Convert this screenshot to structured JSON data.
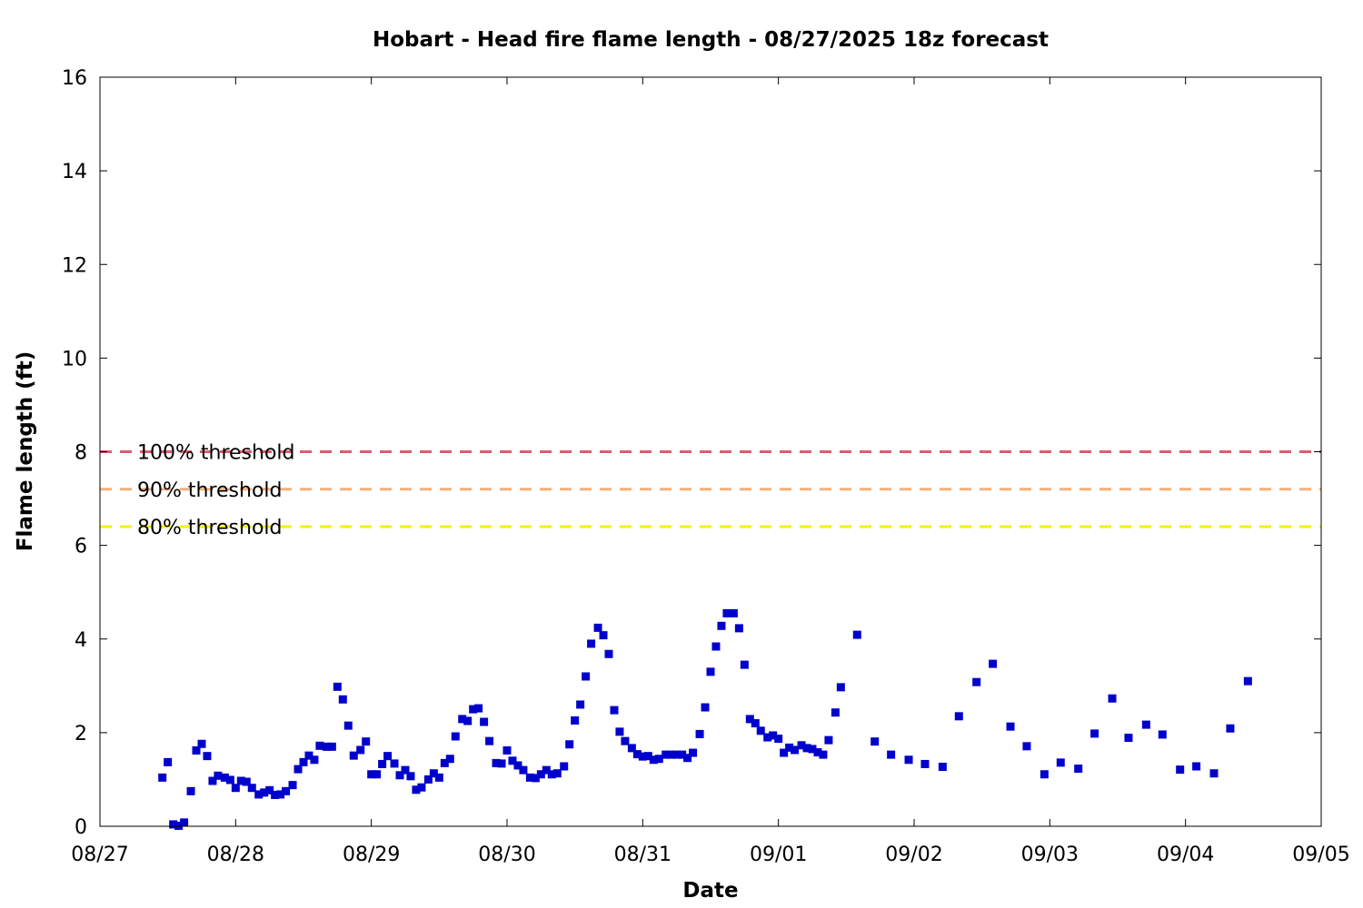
{
  "chart_data": {
    "type": "scatter",
    "title": "Hobart - Head fire flame length - 08/27/2025 18z forecast",
    "xlabel": "Date",
    "ylabel": "Flame length (ft)",
    "xlim": [
      0,
      9
    ],
    "ylim": [
      0,
      16
    ],
    "x_ticks": [
      {
        "value": 0,
        "label": "08/27"
      },
      {
        "value": 1,
        "label": "08/28"
      },
      {
        "value": 2,
        "label": "08/29"
      },
      {
        "value": 3,
        "label": "08/30"
      },
      {
        "value": 4,
        "label": "08/31"
      },
      {
        "value": 5,
        "label": "09/01"
      },
      {
        "value": 6,
        "label": "09/02"
      },
      {
        "value": 7,
        "label": "09/03"
      },
      {
        "value": 8,
        "label": "09/04"
      },
      {
        "value": 9,
        "label": "09/05"
      }
    ],
    "y_ticks": [
      0,
      2,
      4,
      6,
      8,
      10,
      12,
      14,
      16
    ],
    "grid": false,
    "thresholds": [
      {
        "name": "100% threshold",
        "value": 8.0,
        "color": "#e05c70"
      },
      {
        "name": "90% threshold",
        "value": 7.2,
        "color": "#f5b07a"
      },
      {
        "name": "80% threshold",
        "value": 6.4,
        "color": "#f2f20a"
      }
    ],
    "series": [
      {
        "marker_color": "#0000cc",
        "points": [
          [
            0.46,
            1.04
          ],
          [
            0.5,
            1.37
          ],
          [
            0.54,
            0.04
          ],
          [
            0.58,
            0.01
          ],
          [
            0.62,
            0.08
          ],
          [
            0.67,
            0.75
          ],
          [
            0.71,
            1.62
          ],
          [
            0.75,
            1.76
          ],
          [
            0.79,
            1.5
          ],
          [
            0.83,
            0.97
          ],
          [
            0.87,
            1.08
          ],
          [
            0.92,
            1.04
          ],
          [
            0.96,
            0.99
          ],
          [
            1.0,
            0.82
          ],
          [
            1.04,
            0.97
          ],
          [
            1.08,
            0.95
          ],
          [
            1.12,
            0.82
          ],
          [
            1.17,
            0.68
          ],
          [
            1.21,
            0.72
          ],
          [
            1.25,
            0.77
          ],
          [
            1.29,
            0.67
          ],
          [
            1.33,
            0.68
          ],
          [
            1.37,
            0.75
          ],
          [
            1.42,
            0.88
          ],
          [
            1.46,
            1.22
          ],
          [
            1.5,
            1.37
          ],
          [
            1.54,
            1.51
          ],
          [
            1.58,
            1.42
          ],
          [
            1.62,
            1.72
          ],
          [
            1.67,
            1.7
          ],
          [
            1.71,
            1.7
          ],
          [
            1.75,
            2.98
          ],
          [
            1.79,
            2.71
          ],
          [
            1.83,
            2.15
          ],
          [
            1.87,
            1.51
          ],
          [
            1.92,
            1.63
          ],
          [
            1.96,
            1.81
          ],
          [
            2.0,
            1.11
          ],
          [
            2.04,
            1.11
          ],
          [
            2.08,
            1.33
          ],
          [
            2.12,
            1.5
          ],
          [
            2.17,
            1.34
          ],
          [
            2.21,
            1.09
          ],
          [
            2.25,
            1.2
          ],
          [
            2.29,
            1.07
          ],
          [
            2.33,
            0.78
          ],
          [
            2.37,
            0.83
          ],
          [
            2.42,
            1.0
          ],
          [
            2.46,
            1.13
          ],
          [
            2.5,
            1.04
          ],
          [
            2.54,
            1.35
          ],
          [
            2.58,
            1.44
          ],
          [
            2.62,
            1.92
          ],
          [
            2.67,
            2.29
          ],
          [
            2.71,
            2.25
          ],
          [
            2.75,
            2.5
          ],
          [
            2.79,
            2.52
          ],
          [
            2.83,
            2.23
          ],
          [
            2.87,
            1.82
          ],
          [
            2.92,
            1.35
          ],
          [
            2.96,
            1.34
          ],
          [
            3.0,
            1.62
          ],
          [
            3.04,
            1.4
          ],
          [
            3.08,
            1.3
          ],
          [
            3.12,
            1.2
          ],
          [
            3.17,
            1.04
          ],
          [
            3.21,
            1.03
          ],
          [
            3.25,
            1.11
          ],
          [
            3.29,
            1.2
          ],
          [
            3.33,
            1.11
          ],
          [
            3.37,
            1.13
          ],
          [
            3.42,
            1.28
          ],
          [
            3.46,
            1.75
          ],
          [
            3.5,
            2.26
          ],
          [
            3.54,
            2.6
          ],
          [
            3.58,
            3.2
          ],
          [
            3.62,
            3.9
          ],
          [
            3.67,
            4.24
          ],
          [
            3.71,
            4.08
          ],
          [
            3.75,
            3.68
          ],
          [
            3.79,
            2.48
          ],
          [
            3.83,
            2.02
          ],
          [
            3.87,
            1.82
          ],
          [
            3.92,
            1.67
          ],
          [
            3.96,
            1.54
          ],
          [
            4.0,
            1.49
          ],
          [
            4.04,
            1.5
          ],
          [
            4.08,
            1.42
          ],
          [
            4.12,
            1.44
          ],
          [
            4.17,
            1.53
          ],
          [
            4.21,
            1.53
          ],
          [
            4.25,
            1.53
          ],
          [
            4.29,
            1.53
          ],
          [
            4.33,
            1.46
          ],
          [
            4.37,
            1.57
          ],
          [
            4.42,
            1.97
          ],
          [
            4.46,
            2.54
          ],
          [
            4.5,
            3.3
          ],
          [
            4.54,
            3.84
          ],
          [
            4.58,
            4.28
          ],
          [
            4.62,
            4.55
          ],
          [
            4.67,
            4.55
          ],
          [
            4.71,
            4.23
          ],
          [
            4.75,
            3.45
          ],
          [
            4.79,
            2.29
          ],
          [
            4.83,
            2.2
          ],
          [
            4.87,
            2.04
          ],
          [
            4.92,
            1.9
          ],
          [
            4.96,
            1.94
          ],
          [
            5.0,
            1.87
          ],
          [
            5.04,
            1.57
          ],
          [
            5.08,
            1.68
          ],
          [
            5.12,
            1.63
          ],
          [
            5.17,
            1.73
          ],
          [
            5.21,
            1.67
          ],
          [
            5.25,
            1.65
          ],
          [
            5.29,
            1.58
          ],
          [
            5.33,
            1.53
          ],
          [
            5.37,
            1.84
          ],
          [
            5.42,
            2.43
          ],
          [
            5.46,
            2.97
          ],
          [
            5.58,
            4.09
          ],
          [
            5.71,
            1.81
          ],
          [
            5.83,
            1.53
          ],
          [
            5.96,
            1.42
          ],
          [
            6.08,
            1.33
          ],
          [
            6.21,
            1.27
          ],
          [
            6.33,
            2.35
          ],
          [
            6.46,
            3.08
          ],
          [
            6.58,
            3.47
          ],
          [
            6.71,
            2.13
          ],
          [
            6.83,
            1.71
          ],
          [
            6.96,
            1.11
          ],
          [
            7.08,
            1.36
          ],
          [
            7.21,
            1.23
          ],
          [
            7.33,
            1.98
          ],
          [
            7.46,
            2.73
          ],
          [
            7.58,
            1.89
          ],
          [
            7.71,
            2.17
          ],
          [
            7.83,
            1.96
          ],
          [
            7.96,
            1.21
          ],
          [
            8.08,
            1.28
          ],
          [
            8.21,
            1.13
          ],
          [
            8.33,
            2.09
          ],
          [
            8.46,
            3.1
          ]
        ]
      }
    ]
  }
}
